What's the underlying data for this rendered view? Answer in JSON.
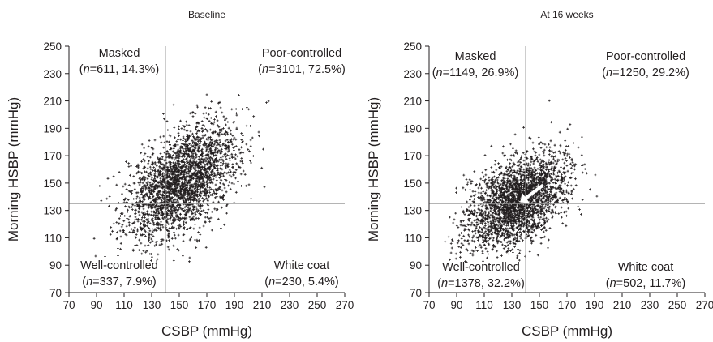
{
  "chart_data": [
    {
      "type": "scatter",
      "title": "Baseline",
      "xlabel": "CSBP (mmHg)",
      "ylabel": "Morning HSBP (mmHg)",
      "xlim": [
        70,
        270
      ],
      "ylim": [
        70,
        250
      ],
      "xticks": [
        "70",
        "90",
        "110",
        "130",
        "150",
        "170",
        "190",
        "210",
        "230",
        "250",
        "270"
      ],
      "yticks": [
        "70",
        "90",
        "110",
        "130",
        "150",
        "170",
        "190",
        "210",
        "230",
        "250"
      ],
      "reference_lines": {
        "x": 140,
        "y": 135
      },
      "scatter_cloud": {
        "n_points": 4279,
        "x_mean": 152,
        "x_sd": 20,
        "y_mean": 151,
        "y_sd": 21,
        "correlation": 0.5,
        "marker": "asterisk",
        "color": "#231f20"
      },
      "quadrants": [
        {
          "name": "Masked",
          "stats": "(n=611, 14.3%)",
          "n": 611,
          "percent": 14.3
        },
        {
          "name": "Poor-controlled",
          "stats": "(n=3101, 72.5%)",
          "n": 3101,
          "percent": 72.5
        },
        {
          "name": "Well-controlled",
          "stats": "(n=337, 7.9%)",
          "n": 337,
          "percent": 7.9
        },
        {
          "name": "White coat",
          "stats": "(n=230, 5.4%)",
          "n": 230,
          "percent": 5.4
        }
      ],
      "grid": false
    },
    {
      "type": "scatter",
      "title": "At 16 weeks",
      "xlabel": "CSBP (mmHg)",
      "ylabel": "Morning HSBP (mmHg)",
      "xlim": [
        70,
        270
      ],
      "ylim": [
        70,
        250
      ],
      "xticks": [
        "70",
        "90",
        "110",
        "130",
        "150",
        "170",
        "190",
        "210",
        "230",
        "250",
        "270"
      ],
      "yticks": [
        "70",
        "90",
        "110",
        "130",
        "150",
        "170",
        "190",
        "210",
        "230",
        "250"
      ],
      "reference_lines": {
        "x": 140,
        "y": 135
      },
      "scatter_cloud": {
        "n_points": 4279,
        "x_mean": 134,
        "x_sd": 18,
        "y_mean": 137,
        "y_sd": 17,
        "correlation": 0.45,
        "marker": "asterisk",
        "color": "#231f20"
      },
      "quadrants": [
        {
          "name": "Masked",
          "stats": "(n=1149, 26.9%)",
          "n": 1149,
          "percent": 26.9
        },
        {
          "name": "Poor-controlled",
          "stats": "(n=1250, 29.2%)",
          "n": 1250,
          "percent": 29.2
        },
        {
          "name": "Well-controlled",
          "stats": "(n=1378, 32.2%)",
          "n": 1378,
          "percent": 32.2
        },
        {
          "name": "White coat",
          "stats": "(n=502, 11.7%)",
          "n": 502,
          "percent": 11.7
        }
      ],
      "arrow": {
        "from": [
          152,
          148
        ],
        "to": [
          136,
          136
        ],
        "color": "#ffffff"
      },
      "grid": false
    }
  ]
}
